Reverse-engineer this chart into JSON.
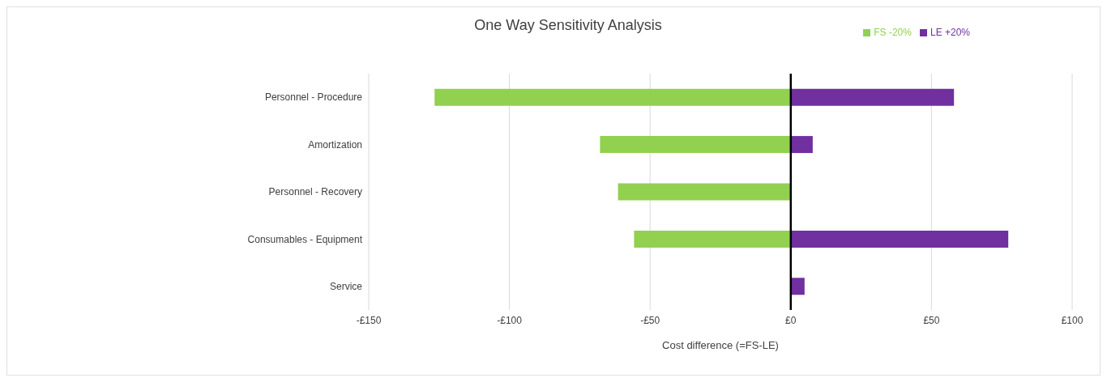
{
  "chart_data": {
    "type": "bar",
    "orientation": "horizontal",
    "stacked": true,
    "title": "One Way Sensitivity Analysis",
    "xlabel": "Cost difference (=FS-LE)",
    "categories": [
      "Personnel - Procedure",
      "Amortization",
      "Personnel - Recovery",
      "Consumables - Equipment",
      "Service"
    ],
    "series": [
      {
        "name": "LE +20%",
        "color": "#7030a0",
        "values": [
          58,
          7.8,
          null,
          77.3,
          4.9
        ]
      },
      {
        "name": "FS -20%",
        "color": "#92d050",
        "values": [
          -126.6,
          -67.8,
          -61.4,
          -55.7,
          null
        ]
      }
    ],
    "xlim": [
      -150,
      100
    ],
    "xticks": [
      {
        "value": -150,
        "label": "-£150"
      },
      {
        "value": -100,
        "label": "-£100"
      },
      {
        "value": -50,
        "label": "-£50"
      },
      {
        "value": 0,
        "label": "£0"
      },
      {
        "value": 50,
        "label": "£50"
      },
      {
        "value": 100,
        "label": "£100"
      }
    ],
    "ref_lines": [
      {
        "axis": "x",
        "value": 0,
        "color": "#000000"
      }
    ],
    "grid": "x",
    "legend": "top right"
  }
}
